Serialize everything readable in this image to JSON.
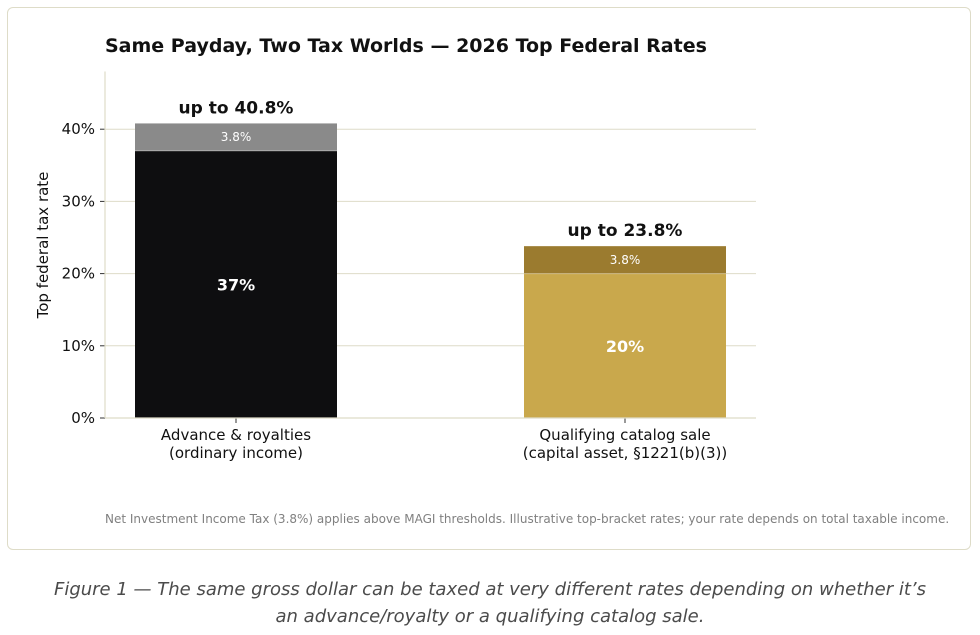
{
  "chart_data": {
    "type": "bar",
    "stacked": true,
    "title": "Same Payday, Two Tax Worlds  —  2026 Top Federal Rates",
    "ylabel": "Top federal tax rate",
    "xlabel": "",
    "ylim": [
      0,
      48
    ],
    "yticks": [
      0,
      10,
      20,
      30,
      40
    ],
    "ytick_labels": [
      "0%",
      "10%",
      "20%",
      "30%",
      "40%"
    ],
    "grid": true,
    "categories": [
      [
        "Advance & royalties",
        "(ordinary income)"
      ],
      [
        "Qualifying catalog sale",
        "(capital asset, §1221(b)(3))"
      ]
    ],
    "bars": [
      {
        "segments": [
          {
            "value": 37,
            "label": "37%",
            "color": "#0e0e10"
          },
          {
            "value": 3.8,
            "label": "3.8%",
            "color": "#8a8a8a"
          }
        ],
        "total_label": "up to 40.8%"
      },
      {
        "segments": [
          {
            "value": 20,
            "label": "20%",
            "color": "#c9a84c"
          },
          {
            "value": 3.8,
            "label": "3.8%",
            "color": "#9b7b2f"
          }
        ],
        "total_label": "up to 23.8%"
      }
    ],
    "note": "Net Investment Income Tax (3.8%) applies above MAGI thresholds. Illustrative top-bracket rates; your rate depends on total taxable income."
  },
  "caption": "Figure 1 — The same gross dollar can be taxed at very different rates depending on whether it’s an advance/royalty or a qualifying catalog sale."
}
